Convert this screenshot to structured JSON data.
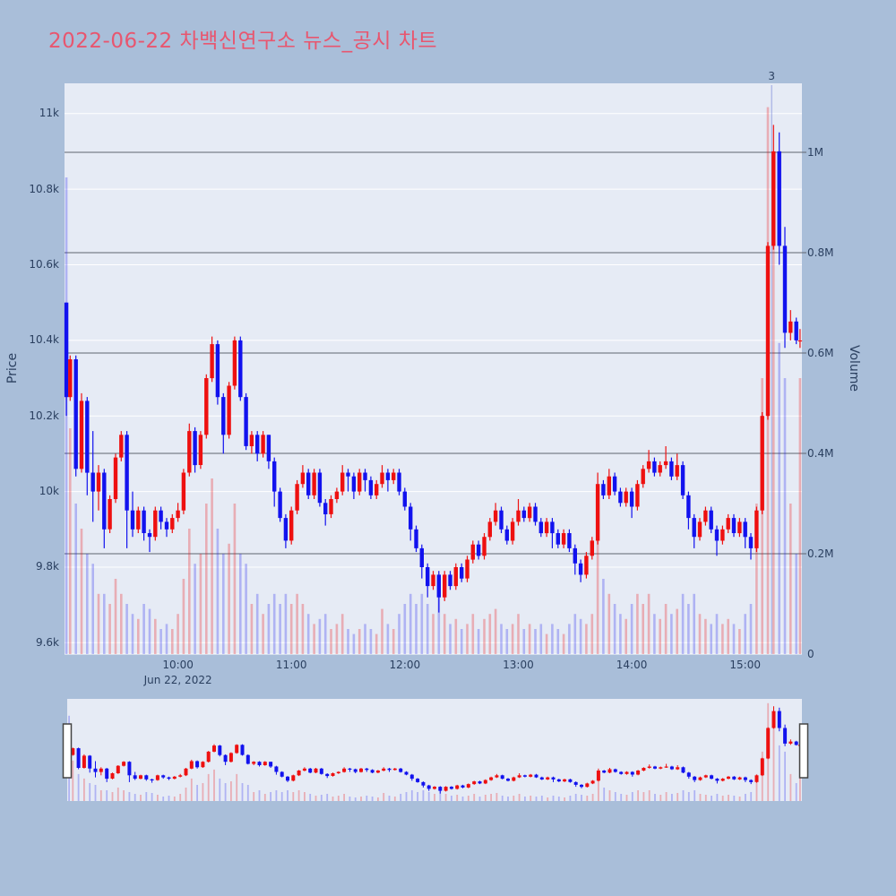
{
  "title": "2022-06-22 차백신연구소 뉴스_공시 차트",
  "colors": {
    "page_bg": "#a9bed9",
    "plot_bg": "#e6ebf5",
    "up": "#ee1010",
    "down": "#1212ee",
    "up_volume": "rgba(238,16,16,0.28)",
    "down_volume": "rgba(18,18,238,0.26)",
    "grid_price": "#ffffff",
    "grid_volume": "#5f6470",
    "axis_text": "#2a3f5f",
    "title_text": "#e8566f",
    "annotation_line": "rgba(110,125,215,0.55)",
    "handle_fill": "#ffffff",
    "handle_border": "#444444"
  },
  "chart_data": {
    "type": "candlestick",
    "title": "2022-06-22 차백신연구소 뉴스_공시 차트",
    "legend": "none",
    "grid": "on",
    "x_axis": {
      "tick_labels": [
        "10:00",
        "11:00",
        "12:00",
        "13:00",
        "14:00",
        "15:00"
      ],
      "tick_minutes": [
        60,
        120,
        180,
        240,
        300,
        360
      ],
      "date_label": "Jun 22, 2022",
      "range_minutes": [
        0,
        390
      ],
      "session_start": "09:00"
    },
    "price_axis": {
      "label": "Price",
      "tick_labels": [
        "11k",
        "10.8k",
        "10.6k",
        "10.4k",
        "10.2k",
        "10k",
        "9.8k",
        "9.6k"
      ],
      "tick_values": [
        11000,
        10800,
        10600,
        10400,
        10200,
        10000,
        9800,
        9600
      ],
      "range": [
        9570,
        11080
      ],
      "side": "left"
    },
    "volume_axis": {
      "label": "Volume",
      "tick_labels": [
        "1M",
        "0.8M",
        "0.6M",
        "0.4M",
        "0.2M",
        "0"
      ],
      "tick_values": [
        1.0,
        0.8,
        0.6,
        0.4,
        0.2,
        0
      ],
      "range": [
        0,
        1.1375
      ],
      "side": "right"
    },
    "annotation": {
      "text": "3",
      "minute": 374
    },
    "columns": [
      "time",
      "open",
      "high",
      "low",
      "close",
      "volume_millions"
    ],
    "candles": [
      [
        "09:01",
        10500,
        10500,
        10200,
        10250,
        0.95
      ],
      [
        "09:03",
        10250,
        10360,
        10240,
        10350,
        0.45
      ],
      [
        "09:06",
        10350,
        10360,
        10040,
        10060,
        0.3
      ],
      [
        "09:09",
        10060,
        10260,
        10050,
        10240,
        0.25
      ],
      [
        "09:12",
        10240,
        10250,
        9990,
        10050,
        0.2
      ],
      [
        "09:15",
        10050,
        10160,
        9920,
        10000,
        0.18
      ],
      [
        "09:18",
        10000,
        10070,
        9950,
        10050,
        0.12
      ],
      [
        "09:21",
        10050,
        10060,
        9850,
        9900,
        0.12
      ],
      [
        "09:24",
        9900,
        9990,
        9890,
        9980,
        0.1
      ],
      [
        "09:27",
        9980,
        10100,
        9970,
        10090,
        0.15
      ],
      [
        "09:30",
        10090,
        10160,
        10080,
        10150,
        0.12
      ],
      [
        "09:33",
        10150,
        10160,
        9850,
        9950,
        0.1
      ],
      [
        "09:36",
        9950,
        10000,
        9880,
        9900,
        0.08
      ],
      [
        "09:39",
        9900,
        9960,
        9890,
        9950,
        0.07
      ],
      [
        "09:42",
        9950,
        9960,
        9870,
        9890,
        0.1
      ],
      [
        "09:45",
        9890,
        9900,
        9840,
        9880,
        0.09
      ],
      [
        "09:48",
        9880,
        9960,
        9870,
        9950,
        0.07
      ],
      [
        "09:51",
        9950,
        9960,
        9900,
        9920,
        0.05
      ],
      [
        "09:54",
        9920,
        9930,
        9880,
        9900,
        0.06
      ],
      [
        "09:57",
        9900,
        9940,
        9890,
        9930,
        0.05
      ],
      [
        "10:00",
        9930,
        9970,
        9920,
        9950,
        0.08
      ],
      [
        "10:03",
        9950,
        10060,
        9940,
        10050,
        0.15
      ],
      [
        "10:06",
        10050,
        10180,
        10040,
        10160,
        0.25
      ],
      [
        "10:09",
        10160,
        10170,
        10050,
        10070,
        0.18
      ],
      [
        "10:12",
        10070,
        10160,
        10060,
        10150,
        0.2
      ],
      [
        "10:15",
        10150,
        10310,
        10140,
        10300,
        0.3
      ],
      [
        "10:18",
        10300,
        10410,
        10290,
        10390,
        0.35
      ],
      [
        "10:21",
        10390,
        10400,
        10230,
        10250,
        0.25
      ],
      [
        "10:24",
        10250,
        10260,
        10100,
        10150,
        0.2
      ],
      [
        "10:27",
        10150,
        10290,
        10140,
        10280,
        0.22
      ],
      [
        "10:30",
        10280,
        10410,
        10270,
        10400,
        0.3
      ],
      [
        "10:33",
        10400,
        10410,
        10240,
        10250,
        0.2
      ],
      [
        "10:36",
        10250,
        10260,
        10110,
        10120,
        0.18
      ],
      [
        "10:39",
        10120,
        10160,
        10100,
        10150,
        0.1
      ],
      [
        "10:42",
        10150,
        10160,
        10080,
        10100,
        0.12
      ],
      [
        "10:45",
        10100,
        10160,
        10090,
        10150,
        0.08
      ],
      [
        "10:48",
        10150,
        10150,
        10060,
        10080,
        0.1
      ],
      [
        "10:51",
        10080,
        10090,
        9960,
        10000,
        0.12
      ],
      [
        "10:54",
        10000,
        10010,
        9920,
        9930,
        0.1
      ],
      [
        "10:57",
        9930,
        9940,
        9850,
        9870,
        0.12
      ],
      [
        "11:00",
        9870,
        9960,
        9860,
        9950,
        0.1
      ],
      [
        "11:03",
        9950,
        10030,
        9940,
        10020,
        0.12
      ],
      [
        "11:06",
        10020,
        10070,
        10010,
        10050,
        0.1
      ],
      [
        "11:09",
        10050,
        10060,
        9980,
        9990,
        0.08
      ],
      [
        "11:12",
        9990,
        10060,
        9980,
        10050,
        0.06
      ],
      [
        "11:15",
        10050,
        10060,
        9960,
        9970,
        0.07
      ],
      [
        "11:18",
        9970,
        9980,
        9910,
        9940,
        0.08
      ],
      [
        "11:21",
        9940,
        9990,
        9930,
        9980,
        0.05
      ],
      [
        "11:24",
        9980,
        10010,
        9970,
        10000,
        0.06
      ],
      [
        "11:27",
        10000,
        10070,
        9990,
        10050,
        0.08
      ],
      [
        "11:30",
        10050,
        10060,
        10000,
        10040,
        0.05
      ],
      [
        "11:33",
        10040,
        10050,
        9980,
        10000,
        0.04
      ],
      [
        "11:36",
        10000,
        10060,
        9990,
        10050,
        0.05
      ],
      [
        "11:39",
        10050,
        10060,
        10000,
        10030,
        0.06
      ],
      [
        "11:42",
        10030,
        10040,
        9980,
        9990,
        0.05
      ],
      [
        "11:45",
        9990,
        10030,
        9980,
        10020,
        0.04
      ],
      [
        "11:48",
        10020,
        10070,
        10010,
        10050,
        0.09
      ],
      [
        "11:51",
        10050,
        10060,
        10000,
        10030,
        0.06
      ],
      [
        "11:54",
        10030,
        10060,
        10020,
        10050,
        0.05
      ],
      [
        "11:57",
        10050,
        10060,
        9990,
        10000,
        0.08
      ],
      [
        "12:00",
        10000,
        10010,
        9950,
        9960,
        0.1
      ],
      [
        "12:03",
        9960,
        9970,
        9870,
        9900,
        0.12
      ],
      [
        "12:06",
        9900,
        9910,
        9840,
        9850,
        0.1
      ],
      [
        "12:09",
        9850,
        9860,
        9770,
        9800,
        0.12
      ],
      [
        "12:12",
        9800,
        9810,
        9720,
        9750,
        0.1
      ],
      [
        "12:15",
        9750,
        9790,
        9740,
        9780,
        0.08
      ],
      [
        "12:18",
        9780,
        9790,
        9680,
        9720,
        0.12
      ],
      [
        "12:21",
        9720,
        9790,
        9710,
        9780,
        0.08
      ],
      [
        "12:24",
        9780,
        9790,
        9740,
        9750,
        0.06
      ],
      [
        "12:27",
        9750,
        9810,
        9740,
        9800,
        0.07
      ],
      [
        "12:30",
        9800,
        9810,
        9760,
        9770,
        0.05
      ],
      [
        "12:33",
        9770,
        9830,
        9760,
        9820,
        0.06
      ],
      [
        "12:36",
        9820,
        9870,
        9810,
        9860,
        0.08
      ],
      [
        "12:39",
        9860,
        9870,
        9820,
        9830,
        0.05
      ],
      [
        "12:42",
        9830,
        9890,
        9820,
        9880,
        0.07
      ],
      [
        "12:45",
        9880,
        9930,
        9870,
        9920,
        0.08
      ],
      [
        "12:48",
        9920,
        9970,
        9910,
        9950,
        0.09
      ],
      [
        "12:51",
        9950,
        9960,
        9890,
        9900,
        0.06
      ],
      [
        "12:54",
        9900,
        9910,
        9860,
        9870,
        0.05
      ],
      [
        "12:57",
        9870,
        9930,
        9860,
        9920,
        0.06
      ],
      [
        "13:00",
        9920,
        9980,
        9910,
        9950,
        0.08
      ],
      [
        "13:03",
        9950,
        9960,
        9920,
        9930,
        0.05
      ],
      [
        "13:06",
        9930,
        9970,
        9920,
        9960,
        0.06
      ],
      [
        "13:09",
        9960,
        9970,
        9910,
        9920,
        0.05
      ],
      [
        "13:12",
        9920,
        9930,
        9880,
        9890,
        0.06
      ],
      [
        "13:15",
        9890,
        9930,
        9880,
        9920,
        0.04
      ],
      [
        "13:18",
        9920,
        9930,
        9850,
        9890,
        0.06
      ],
      [
        "13:21",
        9890,
        9900,
        9850,
        9860,
        0.05
      ],
      [
        "13:24",
        9860,
        9900,
        9850,
        9890,
        0.04
      ],
      [
        "13:27",
        9890,
        9900,
        9840,
        9850,
        0.06
      ],
      [
        "13:30",
        9850,
        9860,
        9780,
        9810,
        0.08
      ],
      [
        "13:33",
        9810,
        9820,
        9760,
        9780,
        0.07
      ],
      [
        "13:36",
        9780,
        9840,
        9770,
        9830,
        0.06
      ],
      [
        "13:39",
        9830,
        9880,
        9820,
        9870,
        0.08
      ],
      [
        "13:42",
        9870,
        10050,
        9860,
        10020,
        0.25
      ],
      [
        "13:45",
        10020,
        10030,
        9980,
        9990,
        0.15
      ],
      [
        "13:48",
        9990,
        10060,
        9980,
        10040,
        0.12
      ],
      [
        "13:51",
        10040,
        10050,
        9990,
        10000,
        0.1
      ],
      [
        "13:54",
        10000,
        10010,
        9960,
        9970,
        0.08
      ],
      [
        "13:57",
        9970,
        10010,
        9960,
        10000,
        0.07
      ],
      [
        "14:00",
        10000,
        10010,
        9930,
        9960,
        0.1
      ],
      [
        "14:03",
        9960,
        10030,
        9950,
        10020,
        0.12
      ],
      [
        "14:06",
        10020,
        10070,
        10010,
        10060,
        0.1
      ],
      [
        "14:09",
        10060,
        10110,
        10050,
        10080,
        0.12
      ],
      [
        "14:12",
        10080,
        10090,
        10040,
        10050,
        0.08
      ],
      [
        "14:15",
        10050,
        10080,
        10040,
        10070,
        0.07
      ],
      [
        "14:18",
        10070,
        10120,
        10060,
        10080,
        0.1
      ],
      [
        "14:21",
        10080,
        10090,
        10030,
        10040,
        0.08
      ],
      [
        "14:24",
        10040,
        10100,
        10030,
        10070,
        0.09
      ],
      [
        "14:27",
        10070,
        10080,
        9980,
        9990,
        0.12
      ],
      [
        "14:30",
        9990,
        10000,
        9900,
        9930,
        0.1
      ],
      [
        "14:33",
        9930,
        9940,
        9850,
        9880,
        0.12
      ],
      [
        "14:36",
        9880,
        9930,
        9870,
        9920,
        0.08
      ],
      [
        "14:39",
        9920,
        9960,
        9910,
        9950,
        0.07
      ],
      [
        "14:42",
        9950,
        9960,
        9890,
        9900,
        0.06
      ],
      [
        "14:45",
        9900,
        9910,
        9830,
        9870,
        0.08
      ],
      [
        "14:48",
        9870,
        9910,
        9860,
        9900,
        0.06
      ],
      [
        "14:51",
        9900,
        9940,
        9890,
        9930,
        0.07
      ],
      [
        "14:54",
        9930,
        9940,
        9880,
        9890,
        0.06
      ],
      [
        "14:57",
        9890,
        9930,
        9880,
        9920,
        0.05
      ],
      [
        "15:00",
        9920,
        9930,
        9850,
        9880,
        0.08
      ],
      [
        "15:03",
        9880,
        9890,
        9820,
        9850,
        0.1
      ],
      [
        "15:06",
        9850,
        9960,
        9840,
        9950,
        0.3
      ],
      [
        "15:09",
        9950,
        10210,
        9940,
        10200,
        0.55
      ],
      [
        "15:12",
        10200,
        10660,
        10190,
        10650,
        1.09
      ],
      [
        "15:15",
        10650,
        10970,
        10640,
        10900,
        0.85
      ],
      [
        "15:18",
        10900,
        10950,
        10600,
        10650,
        0.62
      ],
      [
        "15:21",
        10650,
        10700,
        10380,
        10420,
        0.55
      ],
      [
        "15:24",
        10420,
        10480,
        10400,
        10450,
        0.3
      ],
      [
        "15:27",
        10450,
        10460,
        10390,
        10400,
        0.2
      ],
      [
        "15:29",
        10400,
        10430,
        10380,
        10400,
        0.55
      ]
    ]
  },
  "rangeslider": {
    "present": true,
    "left_handle": "drag-handle",
    "right_handle": "drag-handle"
  }
}
